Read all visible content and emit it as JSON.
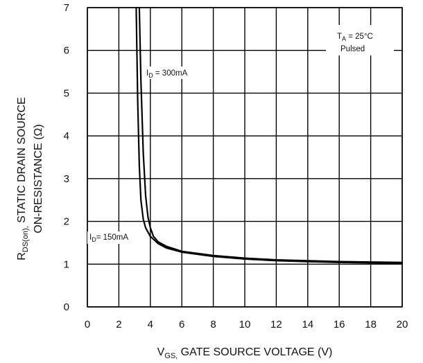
{
  "chart_data": {
    "type": "line",
    "title": "",
    "xlabel": {
      "prefix": "V",
      "sub": "GS,",
      "rest": " GATE SOURCE VOLTAGE (V)"
    },
    "ylabel": {
      "line1_prefix": "R",
      "line1_sub": "DS(on),",
      "line1_rest": " STATIC DRAIN SOURCE",
      "line2": "ON-RESISTANCE (Ω)"
    },
    "xlim": [
      0,
      20
    ],
    "ylim": [
      0,
      7
    ],
    "x_ticks": [
      "0",
      "2",
      "4",
      "6",
      "8",
      "10",
      "12",
      "14",
      "16",
      "18",
      "20"
    ],
    "y_ticks": [
      "0",
      "1",
      "2",
      "3",
      "4",
      "5",
      "6",
      "7"
    ],
    "grid": true,
    "legend": "none",
    "conditions": {
      "prefix": "T",
      "sub": "A",
      "rest": " = 25°C",
      "line2": "Pulsed"
    },
    "series": [
      {
        "name": "I_D = 150mA",
        "label": {
          "prefix": "I",
          "sub": "D",
          "rest": "= 150mA"
        },
        "x": [
          3.1,
          3.2,
          3.3,
          3.4,
          3.55,
          3.7,
          4.0,
          4.5,
          5.0,
          6.0,
          8.0,
          10.0,
          12.0,
          14.0,
          16.0,
          18.0,
          20.0
        ],
        "y": [
          7.0,
          4.8,
          3.3,
          2.5,
          2.05,
          1.85,
          1.65,
          1.48,
          1.38,
          1.28,
          1.18,
          1.12,
          1.08,
          1.06,
          1.04,
          1.03,
          1.02
        ]
      },
      {
        "name": "I_D = 300mA",
        "label": {
          "prefix": "I",
          "sub": "D",
          "rest": " = 300mA"
        },
        "x": [
          3.3,
          3.4,
          3.55,
          3.7,
          3.85,
          4.0,
          4.2,
          4.5,
          5.0,
          6.0,
          8.0,
          10.0,
          12.0,
          14.0,
          16.0,
          18.0,
          20.0
        ],
        "y": [
          7.0,
          5.3,
          3.6,
          2.6,
          2.1,
          1.85,
          1.65,
          1.52,
          1.42,
          1.3,
          1.2,
          1.14,
          1.1,
          1.08,
          1.06,
          1.05,
          1.04
        ]
      }
    ]
  }
}
